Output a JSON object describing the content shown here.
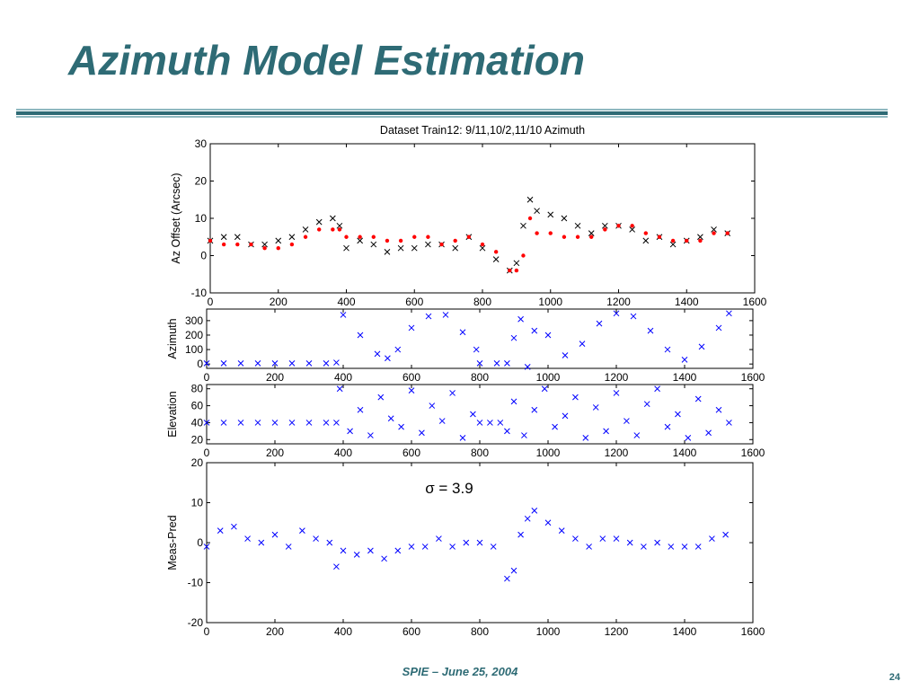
{
  "slide": {
    "title": "Azimuth Model Estimation",
    "footer": "SPIE – June 25, 2004",
    "page_number": "24"
  },
  "colors": {
    "title": "#2e6b75",
    "rule_dark": "#2e6b75",
    "rule_light": "#8fb8c0",
    "measured": "#000000",
    "model": "#ff0000",
    "blue": "#0000ff"
  },
  "chart_data": [
    {
      "type": "scatter",
      "title": "Dataset Train12: 9/11,10/2,11/10 Azimuth",
      "xlabel": "",
      "ylabel": "Az Offset (Arcsec)",
      "xlim": [
        0,
        1600
      ],
      "ylim": [
        -10,
        30
      ],
      "xticks": [
        0,
        200,
        400,
        600,
        800,
        1000,
        1200,
        1400,
        1600
      ],
      "yticks": [
        -10,
        0,
        10,
        20,
        30
      ],
      "series": [
        {
          "marker": "x",
          "color": "black",
          "x": [
            0,
            40,
            80,
            120,
            160,
            200,
            240,
            280,
            320,
            360,
            380,
            400,
            440,
            480,
            520,
            560,
            600,
            640,
            680,
            720,
            760,
            800,
            840,
            880,
            900,
            920,
            940,
            960,
            1000,
            1040,
            1080,
            1120,
            1160,
            1200,
            1240,
            1280,
            1320,
            1360,
            1400,
            1440,
            1480,
            1520
          ],
          "y": [
            4,
            5,
            5,
            3,
            3,
            4,
            5,
            7,
            9,
            10,
            8,
            2,
            4,
            3,
            1,
            2,
            2,
            3,
            3,
            2,
            5,
            2,
            -1,
            -4,
            -2,
            8,
            15,
            12,
            11,
            10,
            8,
            6,
            8,
            8,
            7,
            4,
            5,
            3,
            4,
            5,
            7,
            6
          ]
        },
        {
          "marker": "dot",
          "color": "red",
          "x": [
            0,
            40,
            80,
            120,
            160,
            200,
            240,
            280,
            320,
            360,
            380,
            400,
            440,
            480,
            520,
            560,
            600,
            640,
            680,
            720,
            760,
            800,
            840,
            880,
            900,
            920,
            940,
            960,
            1000,
            1040,
            1080,
            1120,
            1160,
            1200,
            1240,
            1280,
            1320,
            1360,
            1400,
            1440,
            1480,
            1520
          ],
          "y": [
            4,
            3,
            3,
            3,
            2,
            2,
            3,
            5,
            7,
            7,
            7,
            5,
            5,
            5,
            4,
            4,
            5,
            5,
            3,
            4,
            5,
            3,
            1,
            -4,
            -4,
            0,
            10,
            6,
            6,
            5,
            5,
            5,
            7,
            8,
            8,
            6,
            5,
            4,
            4,
            4,
            6,
            6
          ]
        }
      ]
    },
    {
      "type": "scatter",
      "title": "",
      "xlabel": "",
      "ylabel": "Azimuth",
      "xlim": [
        0,
        1600
      ],
      "ylim": [
        -30,
        380
      ],
      "xticks": [
        0,
        200,
        400,
        600,
        800,
        1000,
        1200,
        1400,
        1600
      ],
      "yticks": [
        0,
        100,
        200,
        300
      ],
      "series": [
        {
          "marker": "x",
          "color": "blue",
          "x": [
            0,
            50,
            100,
            150,
            200,
            250,
            300,
            350,
            380,
            400,
            450,
            500,
            530,
            560,
            600,
            650,
            700,
            750,
            790,
            800,
            850,
            880,
            900,
            920,
            940,
            960,
            1000,
            1050,
            1100,
            1150,
            1200,
            1250,
            1300,
            1350,
            1400,
            1450,
            1500,
            1530
          ],
          "y": [
            5,
            5,
            5,
            5,
            5,
            5,
            5,
            5,
            10,
            340,
            200,
            70,
            40,
            100,
            250,
            330,
            340,
            220,
            100,
            5,
            5,
            5,
            180,
            310,
            -20,
            230,
            200,
            60,
            140,
            280,
            350,
            330,
            230,
            100,
            30,
            120,
            250,
            350
          ]
        }
      ]
    },
    {
      "type": "scatter",
      "title": "",
      "xlabel": "",
      "ylabel": "Elevation",
      "xlim": [
        0,
        1600
      ],
      "ylim": [
        15,
        85
      ],
      "xticks": [
        0,
        200,
        400,
        600,
        800,
        1000,
        1200,
        1400,
        1600
      ],
      "yticks": [
        20,
        40,
        60,
        80
      ],
      "series": [
        {
          "marker": "x",
          "color": "blue",
          "x": [
            0,
            50,
            100,
            150,
            200,
            250,
            300,
            350,
            380,
            390,
            420,
            450,
            480,
            510,
            540,
            570,
            600,
            630,
            660,
            690,
            720,
            750,
            780,
            800,
            830,
            860,
            880,
            900,
            930,
            960,
            990,
            1020,
            1050,
            1080,
            1110,
            1140,
            1170,
            1200,
            1230,
            1260,
            1290,
            1320,
            1350,
            1380,
            1410,
            1440,
            1470,
            1500,
            1530
          ],
          "y": [
            40,
            40,
            40,
            40,
            40,
            40,
            40,
            40,
            40,
            80,
            30,
            55,
            25,
            70,
            45,
            35,
            78,
            28,
            60,
            42,
            75,
            22,
            50,
            40,
            40,
            40,
            30,
            65,
            25,
            55,
            80,
            35,
            48,
            70,
            22,
            58,
            30,
            75,
            42,
            25,
            62,
            80,
            35,
            50,
            22,
            68,
            28,
            55,
            40
          ]
        }
      ]
    },
    {
      "type": "scatter",
      "title": "",
      "xlabel": "",
      "ylabel": "Meas-Pred",
      "xlim": [
        0,
        1600
      ],
      "ylim": [
        -20,
        20
      ],
      "xticks": [
        0,
        200,
        400,
        600,
        800,
        1000,
        1200,
        1400,
        1600
      ],
      "yticks": [
        -20,
        -10,
        0,
        10,
        20
      ],
      "annotation": "σ = 3.9",
      "series": [
        {
          "marker": "x",
          "color": "blue",
          "x": [
            0,
            40,
            80,
            120,
            160,
            200,
            240,
            280,
            320,
            360,
            380,
            400,
            440,
            480,
            520,
            560,
            600,
            640,
            680,
            720,
            760,
            800,
            840,
            880,
            900,
            920,
            940,
            960,
            1000,
            1040,
            1080,
            1120,
            1160,
            1200,
            1240,
            1280,
            1320,
            1360,
            1400,
            1440,
            1480,
            1520
          ],
          "y": [
            -1,
            3,
            4,
            1,
            0,
            2,
            -1,
            3,
            1,
            0,
            -6,
            -2,
            -3,
            -2,
            -4,
            -2,
            -1,
            -1,
            1,
            -1,
            0,
            0,
            -1,
            -9,
            -7,
            2,
            6,
            8,
            5,
            3,
            1,
            -1,
            1,
            1,
            0,
            -1,
            0,
            -1,
            -1,
            -1,
            1,
            2
          ]
        }
      ]
    }
  ]
}
